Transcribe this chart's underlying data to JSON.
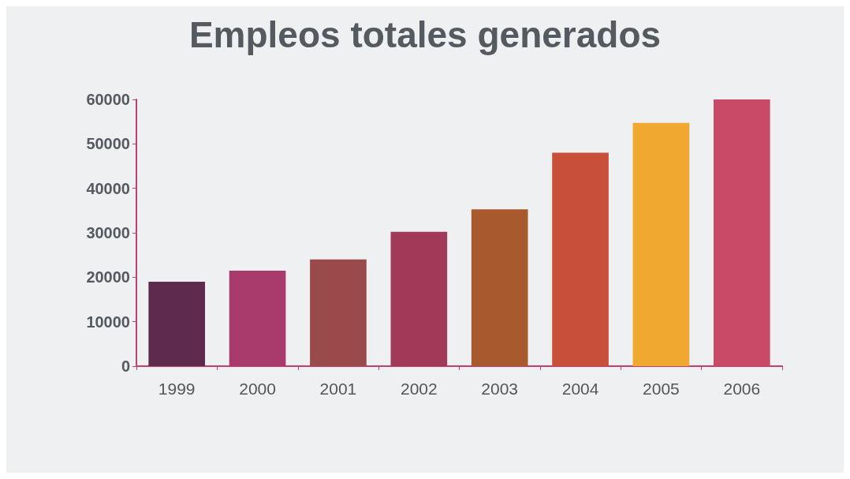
{
  "chart_data": {
    "type": "bar",
    "title": "Empleos totales generados",
    "categories": [
      "1999",
      "2000",
      "2001",
      "2002",
      "2003",
      "2004",
      "2005",
      "2006"
    ],
    "values": [
      19000,
      21500,
      24000,
      30200,
      35300,
      48000,
      54700,
      60000
    ],
    "colors": [
      "#5e2a4e",
      "#a83a6c",
      "#9a4a4a",
      "#a03a58",
      "#a85a2e",
      "#c8503a",
      "#f0a830",
      "#c84a66"
    ],
    "ylim": [
      0,
      60000
    ],
    "yticks": [
      0,
      10000,
      20000,
      30000,
      40000,
      50000,
      60000
    ],
    "grid": false
  }
}
